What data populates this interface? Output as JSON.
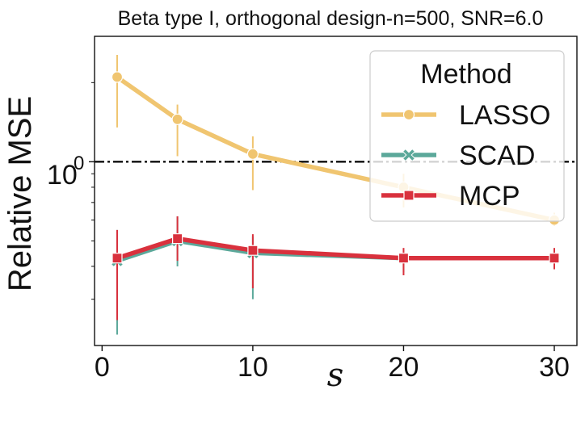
{
  "chart_data": {
    "type": "line",
    "title": "Beta type I, orthogonal design-n=500, SNR=6.0",
    "xlabel": "s",
    "ylabel": "Relative MSE",
    "yscale": "log",
    "xlim": [
      -0.5,
      31.5
    ],
    "ylim": [
      0.2,
      3.0
    ],
    "x_ticks": [
      0,
      10,
      20,
      30
    ],
    "x_tick_labels": [
      "0",
      "10",
      "20",
      "30"
    ],
    "y_major_tick": {
      "base": "10",
      "exponent": "0",
      "value": 1.0
    },
    "reference_line": {
      "y": 1.0,
      "style": "dash-dot",
      "color": "#000000"
    },
    "legend": {
      "title": "Method",
      "position": "top-right"
    },
    "x": [
      1,
      5,
      10,
      20,
      30
    ],
    "series": [
      {
        "name": "LASSO",
        "color": "#F0C570",
        "marker": "circle",
        "values": [
          2.1,
          1.45,
          1.07,
          0.8,
          0.6
        ],
        "err_low": [
          1.35,
          1.05,
          0.78,
          0.67,
          0.57
        ],
        "err_high": [
          2.55,
          1.65,
          1.25,
          0.9,
          0.64
        ]
      },
      {
        "name": "SCAD",
        "color": "#5BA89A",
        "marker": "x",
        "values": [
          0.42,
          0.5,
          0.45,
          0.43,
          0.43
        ],
        "err_low": [
          0.22,
          0.4,
          0.3,
          0.38,
          0.39
        ],
        "err_high": [
          0.55,
          0.62,
          0.52,
          0.45,
          0.46
        ]
      },
      {
        "name": "MCP",
        "color": "#D9313D",
        "marker": "square",
        "values": [
          0.43,
          0.51,
          0.46,
          0.43,
          0.43
        ],
        "err_low": [
          0.25,
          0.42,
          0.33,
          0.37,
          0.39
        ],
        "err_high": [
          0.55,
          0.62,
          0.53,
          0.47,
          0.47
        ]
      }
    ]
  }
}
